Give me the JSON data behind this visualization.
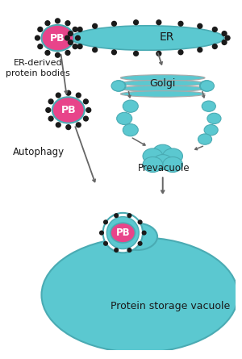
{
  "background_color": "#ffffff",
  "cyan_color": "#5BC8D0",
  "cyan_dark": "#4AABB3",
  "golgi_gray": "#aaaaaa",
  "magenta_color": "#E8448A",
  "black_color": "#1a1a1a",
  "white_color": "#ffffff",
  "arrow_color": "#666666",
  "figsize": [
    3.0,
    4.45
  ],
  "dpi": 100,
  "labels": {
    "ER": "ER",
    "PB": "PB",
    "Golgi": "Golgi",
    "Prevacuole": "Prevacuole",
    "ER_derived": "ER-derived\nprotein bodies",
    "Autophagy": "Autophagy",
    "PSV": "Protein storage vacuole"
  }
}
